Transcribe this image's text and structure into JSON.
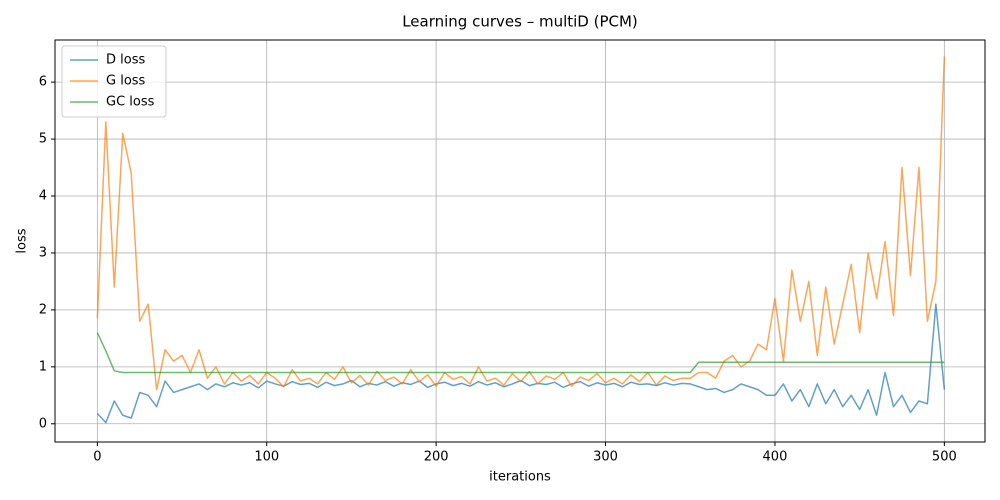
{
  "chart_data": {
    "type": "line",
    "title": "Learning curves – multiD (PCM)",
    "xlabel": "iterations",
    "ylabel": "loss",
    "x": [
      0,
      5,
      10,
      15,
      20,
      25,
      30,
      35,
      40,
      45,
      50,
      55,
      60,
      65,
      70,
      75,
      80,
      85,
      90,
      95,
      100,
      105,
      110,
      115,
      120,
      125,
      130,
      135,
      140,
      145,
      150,
      155,
      160,
      165,
      170,
      175,
      180,
      185,
      190,
      195,
      200,
      205,
      210,
      215,
      220,
      225,
      230,
      235,
      240,
      245,
      250,
      255,
      260,
      265,
      270,
      275,
      280,
      285,
      290,
      295,
      300,
      305,
      310,
      315,
      320,
      325,
      330,
      335,
      340,
      345,
      350,
      355,
      360,
      365,
      370,
      375,
      380,
      385,
      390,
      395,
      400,
      405,
      410,
      415,
      420,
      425,
      430,
      435,
      440,
      445,
      450,
      455,
      460,
      465,
      470,
      475,
      480,
      485,
      490,
      495,
      500
    ],
    "series": [
      {
        "name": "D loss",
        "color": "#1f77b4",
        "values": [
          0.18,
          0.02,
          0.4,
          0.15,
          0.1,
          0.55,
          0.5,
          0.3,
          0.75,
          0.55,
          0.6,
          0.65,
          0.7,
          0.6,
          0.7,
          0.65,
          0.72,
          0.68,
          0.72,
          0.63,
          0.75,
          0.7,
          0.66,
          0.74,
          0.69,
          0.71,
          0.64,
          0.73,
          0.67,
          0.7,
          0.76,
          0.65,
          0.71,
          0.68,
          0.74,
          0.66,
          0.72,
          0.69,
          0.75,
          0.64,
          0.7,
          0.73,
          0.67,
          0.71,
          0.66,
          0.74,
          0.68,
          0.72,
          0.65,
          0.7,
          0.76,
          0.67,
          0.71,
          0.69,
          0.73,
          0.64,
          0.7,
          0.74,
          0.66,
          0.72,
          0.68,
          0.71,
          0.65,
          0.73,
          0.69,
          0.7,
          0.67,
          0.72,
          0.68,
          0.71,
          0.7,
          0.65,
          0.6,
          0.62,
          0.55,
          0.6,
          0.7,
          0.65,
          0.6,
          0.5,
          0.5,
          0.7,
          0.4,
          0.6,
          0.3,
          0.7,
          0.35,
          0.6,
          0.3,
          0.5,
          0.25,
          0.6,
          0.15,
          0.9,
          0.3,
          0.5,
          0.2,
          0.4,
          0.35,
          2.1,
          0.6
        ]
      },
      {
        "name": "G loss",
        "color": "#ff7f0e",
        "values": [
          1.85,
          5.3,
          2.4,
          5.1,
          4.4,
          1.8,
          2.1,
          0.6,
          1.3,
          1.1,
          1.2,
          0.9,
          1.3,
          0.8,
          1.0,
          0.7,
          0.9,
          0.75,
          0.85,
          0.7,
          0.9,
          0.8,
          0.65,
          0.95,
          0.75,
          0.8,
          0.7,
          0.9,
          0.78,
          1.0,
          0.72,
          0.85,
          0.68,
          0.92,
          0.76,
          0.82,
          0.7,
          0.95,
          0.74,
          0.86,
          0.66,
          0.9,
          0.78,
          0.83,
          0.7,
          1.0,
          0.75,
          0.8,
          0.68,
          0.88,
          0.74,
          0.92,
          0.7,
          0.84,
          0.78,
          0.9,
          0.66,
          0.82,
          0.76,
          0.88,
          0.72,
          0.8,
          0.7,
          0.86,
          0.74,
          0.9,
          0.68,
          0.84,
          0.76,
          0.8,
          0.8,
          0.9,
          0.9,
          0.8,
          1.1,
          1.2,
          1.0,
          1.1,
          1.4,
          1.3,
          2.2,
          1.1,
          2.7,
          1.8,
          2.5,
          1.2,
          2.4,
          1.4,
          2.1,
          2.8,
          1.6,
          3.0,
          2.2,
          3.2,
          1.9,
          4.5,
          2.6,
          4.5,
          1.8,
          2.5,
          6.45
        ]
      },
      {
        "name": "GC loss",
        "color": "#2ca02c",
        "values": [
          1.6,
          1.28,
          0.93,
          0.9,
          0.9,
          0.9,
          0.9,
          0.9,
          0.9,
          0.9,
          0.9,
          0.9,
          0.9,
          0.9,
          0.9,
          0.9,
          0.9,
          0.9,
          0.9,
          0.9,
          0.9,
          0.9,
          0.9,
          0.9,
          0.9,
          0.9,
          0.9,
          0.9,
          0.9,
          0.9,
          0.9,
          0.9,
          0.9,
          0.9,
          0.9,
          0.9,
          0.9,
          0.9,
          0.9,
          0.9,
          0.9,
          0.9,
          0.9,
          0.9,
          0.9,
          0.9,
          0.9,
          0.9,
          0.9,
          0.9,
          0.9,
          0.9,
          0.9,
          0.9,
          0.9,
          0.9,
          0.9,
          0.9,
          0.9,
          0.9,
          0.9,
          0.9,
          0.9,
          0.9,
          0.9,
          0.9,
          0.9,
          0.9,
          0.9,
          0.9,
          0.9,
          1.08,
          1.08,
          1.08,
          1.08,
          1.08,
          1.08,
          1.08,
          1.08,
          1.08,
          1.08,
          1.08,
          1.08,
          1.08,
          1.08,
          1.08,
          1.08,
          1.08,
          1.08,
          1.08,
          1.08,
          1.08,
          1.08,
          1.08,
          1.08,
          1.08,
          1.08,
          1.08,
          1.08,
          1.08,
          1.08
        ]
      }
    ],
    "xlim": [
      -25,
      524
    ],
    "ylim": [
      -0.32,
      6.74
    ],
    "xticks": [
      0,
      100,
      200,
      300,
      400,
      500
    ],
    "yticks": [
      0,
      1,
      2,
      3,
      4,
      5,
      6
    ],
    "grid": true,
    "legend": "upper left"
  }
}
